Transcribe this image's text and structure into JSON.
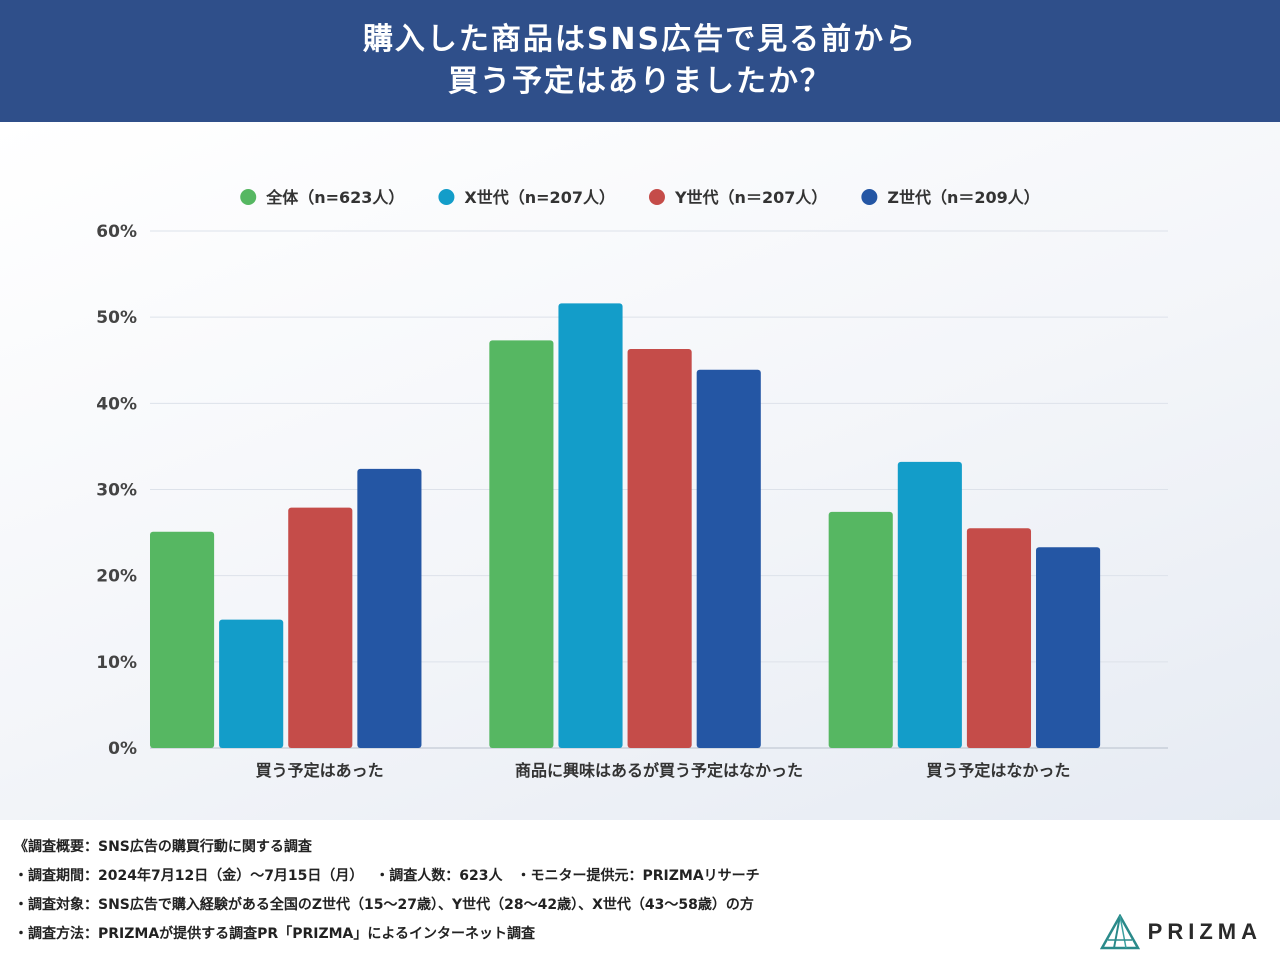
{
  "header": {
    "title_line1": "購入した商品はSNS広告で見る前から",
    "title_line2": "買う予定はありましたか？"
  },
  "chart_data": {
    "type": "bar",
    "categories": [
      "買う予定はあった",
      "商品に興味はあるが買う予定はなかった",
      "買う予定はなかった"
    ],
    "series": [
      {
        "name": "全体（n=623人）",
        "color": "#56b762",
        "values": [
          25.1,
          47.3,
          27.4
        ]
      },
      {
        "name": "X世代（n=207人）",
        "color": "#139dc9",
        "values": [
          14.9,
          51.6,
          33.2
        ]
      },
      {
        "name": "Y世代（n＝207人）",
        "color": "#c54c49",
        "values": [
          27.9,
          46.3,
          25.5
        ]
      },
      {
        "name": "Z世代（n＝209人）",
        "color": "#2456a4",
        "values": [
          32.4,
          43.9,
          23.3
        ]
      }
    ],
    "ylim": [
      0,
      60
    ],
    "yticks": [
      "0%",
      "10%",
      "20%",
      "30%",
      "40%",
      "50%",
      "60%"
    ],
    "grid": true,
    "legend_position": "top-center"
  },
  "footer": {
    "line1": "《調査概要：SNS広告の購買行動に関する調査",
    "line2": "・調査期間：2024年7月12日（金）～7月15日（月）　 ・調査人数：623人　・モニター提供元：PRIZMAリサーチ",
    "line3": "・調査対象：SNS広告で購入経験がある全国のZ世代（15～27歳）、Y世代（28～42歳）、X世代（43～58歳）の方",
    "line4": "・調査方法：PRIZMAが提供する調査PR「PRIZMA」によるインターネット調査"
  },
  "logo": {
    "text": "PRIZMA",
    "color": "#2a8a8a"
  }
}
